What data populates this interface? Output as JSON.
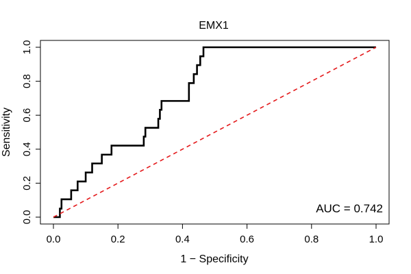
{
  "chart_data": {
    "type": "line",
    "title": "EMX1",
    "xlabel": "1 − Specificity",
    "ylabel": "Sensitivity",
    "xlim": [
      0,
      1
    ],
    "ylim": [
      0,
      1
    ],
    "x_ticks": [
      "0.0",
      "0.2",
      "0.4",
      "0.6",
      "0.8",
      "1.0"
    ],
    "y_ticks": [
      "0.0",
      "0.2",
      "0.4",
      "0.6",
      "0.8",
      "1.0"
    ],
    "grid": false,
    "annotation": "AUC = 0.742",
    "series": [
      {
        "color": "#000000",
        "points": [
          [
            0.0,
            0.0
          ],
          [
            0.02,
            0.0
          ],
          [
            0.02,
            0.05
          ],
          [
            0.025,
            0.05
          ],
          [
            0.025,
            0.105
          ],
          [
            0.055,
            0.105
          ],
          [
            0.055,
            0.158
          ],
          [
            0.075,
            0.158
          ],
          [
            0.075,
            0.21
          ],
          [
            0.1,
            0.21
          ],
          [
            0.1,
            0.263
          ],
          [
            0.12,
            0.263
          ],
          [
            0.12,
            0.316
          ],
          [
            0.15,
            0.316
          ],
          [
            0.15,
            0.368
          ],
          [
            0.18,
            0.368
          ],
          [
            0.18,
            0.421
          ],
          [
            0.28,
            0.421
          ],
          [
            0.28,
            0.474
          ],
          [
            0.285,
            0.474
          ],
          [
            0.285,
            0.526
          ],
          [
            0.325,
            0.526
          ],
          [
            0.325,
            0.579
          ],
          [
            0.33,
            0.579
          ],
          [
            0.33,
            0.632
          ],
          [
            0.335,
            0.632
          ],
          [
            0.335,
            0.684
          ],
          [
            0.42,
            0.684
          ],
          [
            0.42,
            0.789
          ],
          [
            0.435,
            0.789
          ],
          [
            0.435,
            0.842
          ],
          [
            0.445,
            0.842
          ],
          [
            0.445,
            0.895
          ],
          [
            0.455,
            0.895
          ],
          [
            0.455,
            0.947
          ],
          [
            0.465,
            0.947
          ],
          [
            0.465,
            1.0
          ],
          [
            1.0,
            1.0
          ]
        ]
      },
      {
        "color": "#e41a1c",
        "dashed": true,
        "points": [
          [
            0.0,
            0.0
          ],
          [
            1.0,
            1.0
          ]
        ]
      }
    ]
  }
}
